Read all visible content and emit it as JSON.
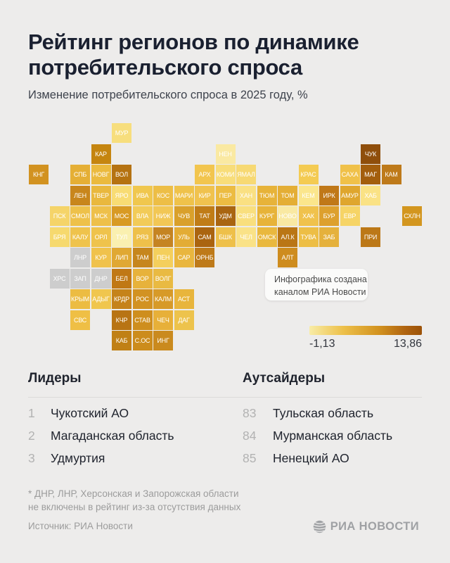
{
  "header": {
    "title": "Рейтинг регионов по динамике потребительского спроса",
    "subtitle": "Изменение потребительского спроса в 2025 году, %"
  },
  "tooltip": {
    "line1": "Инфографика создана",
    "line2": "каналом РИА Новости"
  },
  "chart_data": {
    "type": "heatmap",
    "title": "Рейтинг регионов по динамике потребительского спроса",
    "subtitle": "Изменение потребительского спроса в 2025 году, %",
    "legend": {
      "min_value": -1.13,
      "max_value": 13.86,
      "min_label": "-1,13",
      "max_label": "13,86",
      "min_color": "#F8ECA6",
      "max_color": "#9C5208"
    },
    "no_data_color": "#CDCDCD",
    "regions": [
      {
        "label": "МУР",
        "col": 4,
        "row": 0,
        "color": "#F7DE7D"
      },
      {
        "label": "КАР",
        "col": 3,
        "row": 1,
        "color": "#C5850F"
      },
      {
        "label": "НЕН",
        "col": 9,
        "row": 1,
        "color": "#FAE9A2"
      },
      {
        "label": "ЧУК",
        "col": 16,
        "row": 1,
        "color": "#8F4E0B"
      },
      {
        "label": "КНГ",
        "col": 0,
        "row": 2,
        "color": "#D29220"
      },
      {
        "label": "СПБ",
        "col": 2,
        "row": 2,
        "color": "#E5AF35"
      },
      {
        "label": "НОВГ",
        "col": 3,
        "row": 2,
        "color": "#EBBA3E"
      },
      {
        "label": "ВОЛ",
        "col": 4,
        "row": 2,
        "color": "#B57211"
      },
      {
        "label": "АРХ",
        "col": 8,
        "row": 2,
        "color": "#F2C54E"
      },
      {
        "label": "КОМИ",
        "col": 9,
        "row": 2,
        "color": "#F8DD7A"
      },
      {
        "label": "ЯМАЛ",
        "col": 10,
        "row": 2,
        "color": "#F7D973"
      },
      {
        "label": "КРАС",
        "col": 13,
        "row": 2,
        "color": "#F4CB52"
      },
      {
        "label": "САХА",
        "col": 15,
        "row": 2,
        "color": "#F0C149"
      },
      {
        "label": "МАГ",
        "col": 16,
        "row": 2,
        "color": "#A35E0D"
      },
      {
        "label": "КАМ",
        "col": 17,
        "row": 2,
        "color": "#BE7A1A"
      },
      {
        "label": "ЛЕН",
        "col": 2,
        "row": 3,
        "color": "#C8861C"
      },
      {
        "label": "ТВЕР",
        "col": 3,
        "row": 3,
        "color": "#E9B83E"
      },
      {
        "label": "ЯРО",
        "col": 4,
        "row": 3,
        "color": "#F8DC74"
      },
      {
        "label": "ИВА",
        "col": 5,
        "row": 3,
        "color": "#F0C74E"
      },
      {
        "label": "КОС",
        "col": 6,
        "row": 3,
        "color": "#EDBE46"
      },
      {
        "label": "МАРИ",
        "col": 7,
        "row": 3,
        "color": "#EFC24A"
      },
      {
        "label": "КИР",
        "col": 8,
        "row": 3,
        "color": "#F0C24E"
      },
      {
        "label": "ПЕР",
        "col": 9,
        "row": 3,
        "color": "#ECBC42"
      },
      {
        "label": "ХАН",
        "col": 10,
        "row": 3,
        "color": "#FAE082"
      },
      {
        "label": "ТЮМ",
        "col": 11,
        "row": 3,
        "color": "#E7B339"
      },
      {
        "label": "ТОМ",
        "col": 12,
        "row": 3,
        "color": "#E4AE35"
      },
      {
        "label": "КЕМ",
        "col": 13,
        "row": 3,
        "color": "#FBE68C"
      },
      {
        "label": "ИРК",
        "col": 14,
        "row": 3,
        "color": "#C07818"
      },
      {
        "label": "АМУР",
        "col": 15,
        "row": 3,
        "color": "#DFA62E"
      },
      {
        "label": "ХАБ",
        "col": 16,
        "row": 3,
        "color": "#FAE285"
      },
      {
        "label": "ПСК",
        "col": 1,
        "row": 4,
        "color": "#F5D469"
      },
      {
        "label": "СМОЛ",
        "col": 2,
        "row": 4,
        "color": "#EEC14A"
      },
      {
        "label": "МСК",
        "col": 3,
        "row": 4,
        "color": "#EEC04A"
      },
      {
        "label": "МОС",
        "col": 4,
        "row": 4,
        "color": "#D89A24"
      },
      {
        "label": "ВЛА",
        "col": 5,
        "row": 4,
        "color": "#F2CB58"
      },
      {
        "label": "НИЖ",
        "col": 6,
        "row": 4,
        "color": "#F2C755"
      },
      {
        "label": "ЧУВ",
        "col": 7,
        "row": 4,
        "color": "#D9A02B"
      },
      {
        "label": "ТАТ",
        "col": 8,
        "row": 4,
        "color": "#C07C17"
      },
      {
        "label": "УДМ",
        "col": 9,
        "row": 4,
        "color": "#A96511"
      },
      {
        "label": "СВЕР",
        "col": 10,
        "row": 4,
        "color": "#F9DF7E"
      },
      {
        "label": "КУРГ",
        "col": 11,
        "row": 4,
        "color": "#E7B339"
      },
      {
        "label": "НОВО",
        "col": 12,
        "row": 4,
        "color": "#F9E9A2"
      },
      {
        "label": "ХАК",
        "col": 13,
        "row": 4,
        "color": "#F0C24C"
      },
      {
        "label": "БУР",
        "col": 14,
        "row": 4,
        "color": "#DDA02E"
      },
      {
        "label": "ЕВР",
        "col": 15,
        "row": 4,
        "color": "#F6D466"
      },
      {
        "label": "СХЛН",
        "col": 18,
        "row": 4,
        "color": "#D3961F"
      },
      {
        "label": "БРЯ",
        "col": 1,
        "row": 5,
        "color": "#F6D96E"
      },
      {
        "label": "КАЛУ",
        "col": 2,
        "row": 5,
        "color": "#EFC34C"
      },
      {
        "label": "ОРЛ",
        "col": 3,
        "row": 5,
        "color": "#EFC34C"
      },
      {
        "label": "ТУЛ",
        "col": 4,
        "row": 5,
        "color": "#FAF0B0"
      },
      {
        "label": "РЯЗ",
        "col": 5,
        "row": 5,
        "color": "#EEC04A"
      },
      {
        "label": "МОР",
        "col": 6,
        "row": 5,
        "color": "#C58422"
      },
      {
        "label": "УЛЬ",
        "col": 7,
        "row": 5,
        "color": "#E3AC35"
      },
      {
        "label": "САМ",
        "col": 8,
        "row": 5,
        "color": "#AA6410"
      },
      {
        "label": "БШК",
        "col": 9,
        "row": 5,
        "color": "#EEC04A"
      },
      {
        "label": "ЧЕЛ",
        "col": 10,
        "row": 5,
        "color": "#FAE287"
      },
      {
        "label": "ОМСК",
        "col": 11,
        "row": 5,
        "color": "#E9B83E"
      },
      {
        "label": "АЛ.К",
        "col": 12,
        "row": 5,
        "color": "#BA7615"
      },
      {
        "label": "ТУВА",
        "col": 13,
        "row": 5,
        "color": "#EDBE45"
      },
      {
        "label": "ЗАБ",
        "col": 14,
        "row": 5,
        "color": "#E5B13C"
      },
      {
        "label": "ПРИ",
        "col": 16,
        "row": 5,
        "color": "#BC7817"
      },
      {
        "label": "ЛНР",
        "col": 2,
        "row": 6,
        "color": "#CDCDCD"
      },
      {
        "label": "КУР",
        "col": 3,
        "row": 6,
        "color": "#F0C24C"
      },
      {
        "label": "ЛИП",
        "col": 4,
        "row": 6,
        "color": "#E0A833"
      },
      {
        "label": "ТАМ",
        "col": 5,
        "row": 6,
        "color": "#C6861D"
      },
      {
        "label": "ПЕН",
        "col": 6,
        "row": 6,
        "color": "#F4CF5C"
      },
      {
        "label": "САР",
        "col": 7,
        "row": 6,
        "color": "#E9B63E"
      },
      {
        "label": "ОРНБ",
        "col": 8,
        "row": 6,
        "color": "#BE7A19"
      },
      {
        "label": "АЛТ",
        "col": 12,
        "row": 6,
        "color": "#CE8C1E"
      },
      {
        "label": "ХРС",
        "col": 1,
        "row": 7,
        "color": "#CDCDCD"
      },
      {
        "label": "ЗАП",
        "col": 2,
        "row": 7,
        "color": "#CDCDCD"
      },
      {
        "label": "ДНР",
        "col": 3,
        "row": 7,
        "color": "#CDCDCD"
      },
      {
        "label": "БЕЛ",
        "col": 4,
        "row": 7,
        "color": "#C07815"
      },
      {
        "label": "ВОР",
        "col": 5,
        "row": 7,
        "color": "#E7B23B"
      },
      {
        "label": "ВОЛГ",
        "col": 6,
        "row": 7,
        "color": "#E9BA42"
      },
      {
        "label": "КРЫМ",
        "col": 2,
        "row": 8,
        "color": "#ECBC42"
      },
      {
        "label": "АДЫГ",
        "col": 3,
        "row": 8,
        "color": "#F0C64E"
      },
      {
        "label": "КРДР",
        "col": 4,
        "row": 8,
        "color": "#C5831A"
      },
      {
        "label": "РОС",
        "col": 5,
        "row": 8,
        "color": "#D29222"
      },
      {
        "label": "КАЛМ",
        "col": 6,
        "row": 8,
        "color": "#D79A28"
      },
      {
        "label": "АСТ",
        "col": 7,
        "row": 8,
        "color": "#E8B53C"
      },
      {
        "label": "СВС",
        "col": 2,
        "row": 9,
        "color": "#EFBF45"
      },
      {
        "label": "КЧР",
        "col": 4,
        "row": 9,
        "color": "#B87414"
      },
      {
        "label": "СТАВ",
        "col": 5,
        "row": 9,
        "color": "#CE8E1E"
      },
      {
        "label": "ЧЕЧ",
        "col": 6,
        "row": 9,
        "color": "#E7B039"
      },
      {
        "label": "ДАГ",
        "col": 7,
        "row": 9,
        "color": "#EDC34C"
      },
      {
        "label": "КАБ",
        "col": 4,
        "row": 10,
        "color": "#C08015"
      },
      {
        "label": "С.ОС",
        "col": 5,
        "row": 10,
        "color": "#CC8C1C"
      },
      {
        "label": "ИНГ",
        "col": 6,
        "row": 10,
        "color": "#CA8A1E"
      }
    ]
  },
  "lists": {
    "leaders": {
      "heading": "Лидеры",
      "items": [
        {
          "rank": "1",
          "name": "Чукотский АО"
        },
        {
          "rank": "2",
          "name": "Магаданская область"
        },
        {
          "rank": "3",
          "name": "Удмуртия"
        }
      ]
    },
    "outsiders": {
      "heading": "Аутсайдеры",
      "items": [
        {
          "rank": "83",
          "name": "Тульская область"
        },
        {
          "rank": "84",
          "name": "Мурманская область"
        },
        {
          "rank": "85",
          "name": "Ненецкий АО"
        }
      ]
    }
  },
  "footer": {
    "footnote_line1": "* ДНР, ЛНР, Херсонская и Запорожская области",
    "footnote_line2": "не включены в рейтинг из-за отсутствия данных",
    "source": "Источник: РИА Новости",
    "logo_text": "РИА НОВОСТИ"
  }
}
